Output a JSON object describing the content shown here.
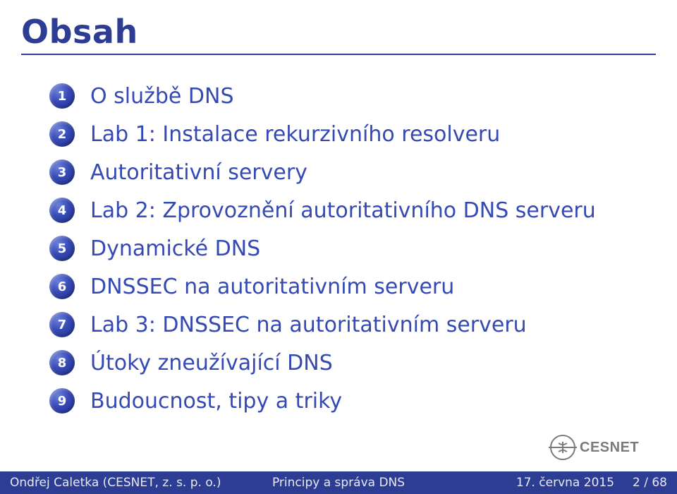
{
  "title": "Obsah",
  "colors": {
    "primary": "#2e3d94",
    "link": "#3549b5",
    "footer_bg": "#2e3d94",
    "footer_fg": "#e8e8f0",
    "background": "#ffffff",
    "logo_gray": "#7a7a7a"
  },
  "typography": {
    "title_fontsize": 46,
    "item_fontsize": 30,
    "footer_fontsize": 17,
    "font_family": "DejaVu Sans, Verdana, sans-serif"
  },
  "toc": [
    {
      "n": "1",
      "label": "O službě DNS"
    },
    {
      "n": "2",
      "label": "Lab 1: Instalace rekurzivního resolveru"
    },
    {
      "n": "3",
      "label": "Autoritativní servery"
    },
    {
      "n": "4",
      "label": "Lab 2: Zprovoznění autoritativního DNS serveru"
    },
    {
      "n": "5",
      "label": "Dynamické DNS"
    },
    {
      "n": "6",
      "label": "DNSSEC na autoritativním serveru"
    },
    {
      "n": "7",
      "label": "Lab 3: DNSSEC na autoritativním serveru"
    },
    {
      "n": "8",
      "label": "Útoky zneužívající DNS"
    },
    {
      "n": "9",
      "label": "Budoucnost, tipy a triky"
    }
  ],
  "logo": {
    "text": "CESNET"
  },
  "footer": {
    "left": "Ondřej Caletka (CESNET, z. s. p. o.)",
    "center": "Principy a správa DNS",
    "date": "17. června 2015",
    "page": "2 / 68"
  }
}
